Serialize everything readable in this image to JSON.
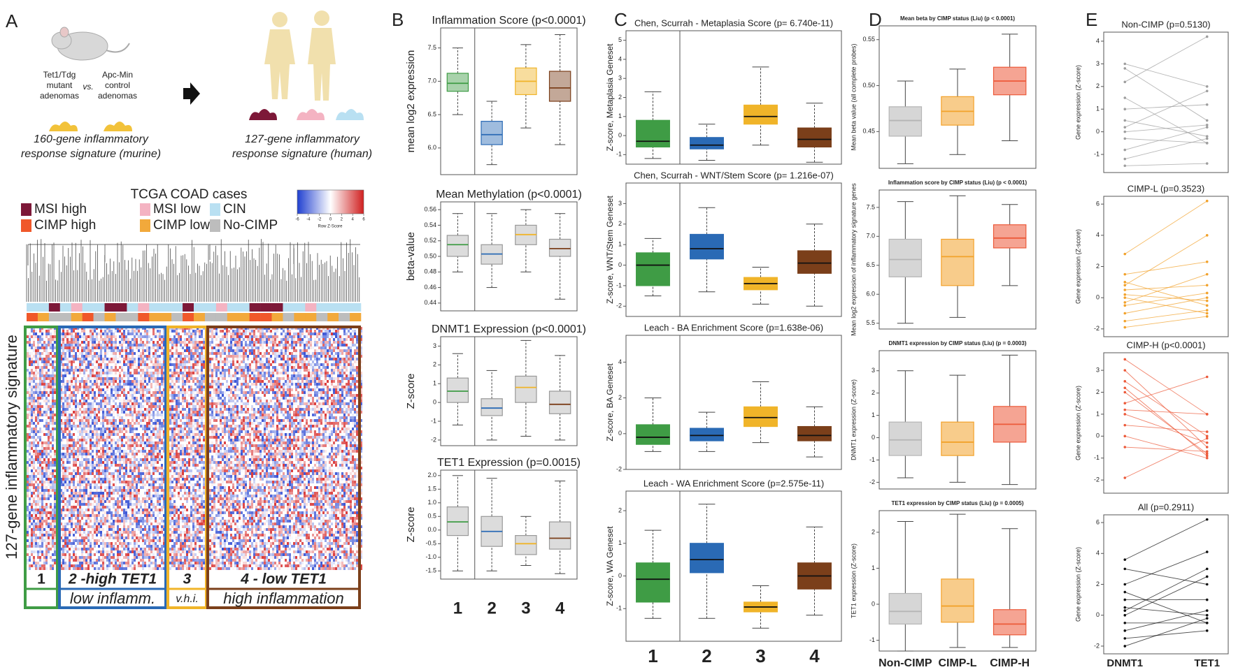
{
  "panel_labels": [
    "A",
    "B",
    "C",
    "D",
    "E"
  ],
  "panel_a": {
    "mutant_label": [
      "Tet1/Tdg",
      "mutant",
      "adenomas"
    ],
    "vs": "vs.",
    "control_label": [
      "Apc-Min",
      "control",
      "adenomas"
    ],
    "murine_signature": [
      "160-gene inflammatory",
      "response signature (murine)"
    ],
    "human_signature": [
      "127-gene inflammatory",
      "response signature (human)"
    ],
    "heatmap_title": "TCGA COAD cases",
    "legend": [
      {
        "name": "MSI high",
        "color": "#7d1838"
      },
      {
        "name": "MSI low",
        "color": "#f4b3c2"
      },
      {
        "name": "CIN",
        "color": "#b9e0f2"
      },
      {
        "name": "CIMP high",
        "color": "#f0582a"
      },
      {
        "name": "CIMP low",
        "color": "#f2a93b"
      },
      {
        "name": "No-CIMP",
        "color": "#bdbdbd"
      }
    ],
    "key": {
      "title": "Row Z-Score",
      "ticks": [
        -6,
        -4,
        -2,
        0,
        2,
        4,
        6
      ]
    },
    "row_label": "127-gene inflammatory signature",
    "clusters": [
      {
        "label": "1",
        "color": "#3f9c45"
      },
      {
        "label": "2 -high TET1",
        "sub": "low inflamm.",
        "color": "#2a6ab5"
      },
      {
        "label": "3",
        "sub": "v.h.i.",
        "color": "#f0b429"
      },
      {
        "label": "4 - low TET1",
        "sub": "high inflammation",
        "color": "#7b3f1a"
      }
    ]
  },
  "chart_data": [
    {
      "type": "box",
      "title": "Inflammation Score (p<0.0001)",
      "y_label": "mean log2 expression",
      "ylim": [
        5.6,
        7.8
      ],
      "yticks": [
        {
          "value": 6,
          "label": "6.0"
        },
        6.5,
        {
          "value": 7,
          "label": "7.0"
        },
        7.5
      ],
      "colors": [
        "#3f9c45",
        "#2a6ab5",
        "#f0b429",
        "#7b3f1a"
      ],
      "fill_opacity": 0.45,
      "boxes": [
        {
          "min": 6.5,
          "q1": 6.85,
          "median": 6.97,
          "q3": 7.12,
          "max": 7.5
        },
        {
          "min": 5.75,
          "q1": 6.05,
          "median": 6.2,
          "q3": 6.4,
          "max": 6.7
        },
        {
          "min": 6.3,
          "q1": 6.8,
          "median": 7.0,
          "q3": 7.2,
          "max": 7.55
        },
        {
          "min": 6.05,
          "q1": 6.7,
          "median": 6.9,
          "q3": 7.15,
          "max": 7.7
        }
      ]
    },
    {
      "type": "box",
      "title": "Mean Methylation (p<0.0001)",
      "y_label": "beta-value",
      "ylim": [
        0.43,
        0.57
      ],
      "yticks": [
        0.44,
        0.46,
        0.48,
        {
          "value": 0.5,
          "label": "0.50"
        },
        0.52,
        0.54,
        0.56
      ],
      "colors": [
        "#3f9c45",
        "#2a6ab5",
        "#f0b429",
        "#7b3f1a"
      ],
      "fill": "#dcdcdc",
      "boxes": [
        {
          "min": 0.48,
          "q1": 0.5,
          "median": 0.515,
          "q3": 0.527,
          "max": 0.555
        },
        {
          "min": 0.46,
          "q1": 0.49,
          "median": 0.503,
          "q3": 0.515,
          "max": 0.555
        },
        {
          "min": 0.48,
          "q1": 0.515,
          "median": 0.528,
          "q3": 0.54,
          "max": 0.56
        },
        {
          "min": 0.445,
          "q1": 0.5,
          "median": 0.51,
          "q3": 0.522,
          "max": 0.555
        }
      ]
    },
    {
      "type": "box",
      "title": "DNMT1 Expression (p<0.0001)",
      "y_label": "Z-score",
      "ylim": [
        -2.3,
        3.5
      ],
      "yticks": [
        -2,
        -1,
        0,
        1,
        2,
        3
      ],
      "colors": [
        "#3f9c45",
        "#2a6ab5",
        "#f0b429",
        "#7b3f1a"
      ],
      "fill": "#dcdcdc",
      "boxes": [
        {
          "min": -1.2,
          "q1": 0,
          "median": 0.6,
          "q3": 1.3,
          "max": 2.6
        },
        {
          "min": -2,
          "q1": -0.7,
          "median": -0.3,
          "q3": 0.2,
          "max": 1.7
        },
        {
          "min": -1.8,
          "q1": 0,
          "median": 0.8,
          "q3": 1.4,
          "max": 3.3
        },
        {
          "min": -2,
          "q1": -0.6,
          "median": -0.1,
          "q3": 0.6,
          "max": 2.5
        }
      ]
    },
    {
      "type": "box",
      "title": "TET1 Expression (p=0.0015)",
      "y_label": "Z-score",
      "ylim": [
        -1.8,
        2.2
      ],
      "yticks": [
        -1.5,
        {
          "value": -1,
          "label": "-1.0"
        },
        -0.5,
        {
          "value": 0,
          "label": "0.0"
        },
        0.5,
        {
          "value": 1,
          "label": "1.0"
        },
        1.5,
        {
          "value": 2,
          "label": "2.0"
        }
      ],
      "colors": [
        "#3f9c45",
        "#2a6ab5",
        "#f0b429",
        "#7b3f1a"
      ],
      "fill": "#dcdcdc",
      "categories": [
        "1",
        "2",
        "3",
        "4"
      ],
      "boxes": [
        {
          "min": -1.5,
          "q1": -0.2,
          "median": 0.3,
          "q3": 0.85,
          "max": 2
        },
        {
          "min": -1.5,
          "q1": -0.6,
          "median": -0.05,
          "q3": 0.5,
          "max": 1.9
        },
        {
          "min": -1.3,
          "q1": -0.9,
          "median": -0.5,
          "q3": -0.2,
          "max": 0.5
        },
        {
          "min": -1.6,
          "q1": -0.7,
          "median": -0.3,
          "q3": 0.3,
          "max": 1.8
        }
      ]
    },
    {
      "type": "box",
      "title": "Chen, Scurrah - Metaplasia Score (p= 6.740e-11)",
      "y_label": "Z-score, Metaplasia Geneset",
      "ylim": [
        -1.5,
        5.5
      ],
      "yticks": [
        -1,
        0,
        1,
        2,
        3,
        4,
        5
      ],
      "colors": [
        "#3f9c45",
        "#2a6ab5",
        "#f0b429",
        "#7b3f1a"
      ],
      "fill_opacity": 1,
      "boxes": [
        {
          "min": -1.2,
          "q1": -0.6,
          "median": -0.3,
          "q3": 0.8,
          "max": 2.3
        },
        {
          "min": -1.3,
          "q1": -0.7,
          "median": -0.5,
          "q3": -0.1,
          "max": 0.6
        },
        {
          "min": -0.5,
          "q1": 0.6,
          "median": 1.0,
          "q3": 1.6,
          "max": 3.6
        },
        {
          "min": -1.4,
          "q1": -0.6,
          "median": -0.2,
          "q3": 0.4,
          "max": 1.7
        }
      ]
    },
    {
      "type": "box",
      "title": "Chen, Scurrah - WNT/Stem Score (p= 1.216e-07)",
      "y_label": "Z-score, WNT/Stem Geneset",
      "ylim": [
        -2.5,
        4
      ],
      "yticks": [
        -2,
        -1,
        0,
        1,
        2,
        3
      ],
      "colors": [
        "#3f9c45",
        "#2a6ab5",
        "#f0b429",
        "#7b3f1a"
      ],
      "fill_opacity": 1,
      "boxes": [
        {
          "min": -1.5,
          "q1": -1.0,
          "median": 0,
          "q3": 0.6,
          "max": 1.3
        },
        {
          "min": -1.3,
          "q1": 0.3,
          "median": 0.8,
          "q3": 1.5,
          "max": 2.8
        },
        {
          "min": -1.9,
          "q1": -1.2,
          "median": -0.9,
          "q3": -0.6,
          "max": -0.1
        },
        {
          "min": -2.0,
          "q1": -0.4,
          "median": 0.1,
          "q3": 0.7,
          "max": 2.0
        }
      ]
    },
    {
      "type": "box",
      "title": "Leach - BA Enrichment Score (p=1.638e-06)",
      "y_label": "Z-score, BA Geneset",
      "ylim": [
        -2,
        5.5
      ],
      "yticks": [
        -2,
        0,
        2,
        4
      ],
      "colors": [
        "#3f9c45",
        "#2a6ab5",
        "#f0b429",
        "#7b3f1a"
      ],
      "fill_opacity": 1,
      "boxes": [
        {
          "min": -1.0,
          "q1": -0.6,
          "median": -0.2,
          "q3": 0.5,
          "max": 2.0
        },
        {
          "min": -1.0,
          "q1": -0.4,
          "median": -0.1,
          "q3": 0.3,
          "max": 1.2
        },
        {
          "min": -0.5,
          "q1": 0.4,
          "median": 0.9,
          "q3": 1.5,
          "max": 2.9
        },
        {
          "min": -1.3,
          "q1": -0.4,
          "median": -0.1,
          "q3": 0.4,
          "max": 1.5
        }
      ]
    },
    {
      "type": "box",
      "title": "Leach - WA Enrichment Score (p=2.575e-11)",
      "y_label": "Z-score, WA Geneset",
      "ylim": [
        -2,
        2.6
      ],
      "yticks": [
        -1,
        0,
        1,
        2
      ],
      "colors": [
        "#3f9c45",
        "#2a6ab5",
        "#f0b429",
        "#7b3f1a"
      ],
      "fill_opacity": 1,
      "categories": [
        "1",
        "2",
        "3",
        "4"
      ],
      "boxes": [
        {
          "min": -1.3,
          "q1": -0.8,
          "median": -0.1,
          "q3": 0.4,
          "max": 1.4
        },
        {
          "min": -1.3,
          "q1": 0.1,
          "median": 0.5,
          "q3": 1.0,
          "max": 2.2
        },
        {
          "min": -1.6,
          "q1": -1.1,
          "median": -0.95,
          "q3": -0.8,
          "max": -0.3
        },
        {
          "min": -1.2,
          "q1": -0.4,
          "median": 0,
          "q3": 0.4,
          "max": 1.5
        }
      ]
    },
    {
      "type": "box",
      "title": "Mean beta by CIMP status (Liu) (p < 0.0001)",
      "y_label": "Mean beta value (all complete probes)",
      "ylim": [
        0.41,
        0.565
      ],
      "yticks": [
        0.45,
        {
          "value": 0.5,
          "label": "0.50"
        },
        0.55
      ],
      "colors": [
        "#b5b5b5",
        "#f2a22b",
        "#ec5a3a"
      ],
      "fill_opacity": 0.55,
      "boxes": [
        {
          "min": 0.415,
          "q1": 0.445,
          "median": 0.462,
          "q3": 0.477,
          "max": 0.505
        },
        {
          "min": 0.425,
          "q1": 0.457,
          "median": 0.472,
          "q3": 0.488,
          "max": 0.518
        },
        {
          "min": 0.44,
          "q1": 0.49,
          "median": 0.505,
          "q3": 0.52,
          "max": 0.556
        }
      ]
    },
    {
      "type": "box",
      "title": "Inflammation score by CIMP status (Liu) (p < 0.0001)",
      "y_label": "Mean log2 expression of inflammatory signature genes",
      "ylim": [
        5.4,
        7.8
      ],
      "yticks": [
        5.5,
        {
          "value": 6,
          "label": "6.0"
        },
        6.5,
        {
          "value": 7,
          "label": "7.0"
        },
        7.5
      ],
      "colors": [
        "#b5b5b5",
        "#f2a22b",
        "#ec5a3a"
      ],
      "fill_opacity": 0.55,
      "boxes": [
        {
          "min": 5.5,
          "q1": 6.3,
          "median": 6.6,
          "q3": 6.95,
          "max": 7.6
        },
        {
          "min": 5.6,
          "q1": 6.15,
          "median": 6.65,
          "q3": 6.95,
          "max": 7.7
        },
        {
          "min": 6.15,
          "q1": 6.8,
          "median": 6.97,
          "q3": 7.2,
          "max": 7.55
        }
      ]
    },
    {
      "type": "box",
      "title": "DNMT1 expression by CIMP status (Liu) (p = 0.0003)",
      "y_label": "DNMT1 expression (Z-score)",
      "ylim": [
        -2.3,
        3.9
      ],
      "yticks": [
        -2,
        -1,
        0,
        1,
        2,
        3
      ],
      "colors": [
        "#b5b5b5",
        "#f2a22b",
        "#ec5a3a"
      ],
      "fill_opacity": 0.55,
      "boxes": [
        {
          "min": -1.8,
          "q1": -0.8,
          "median": -0.1,
          "q3": 0.7,
          "max": 3.0
        },
        {
          "min": -2,
          "q1": -0.8,
          "median": -0.2,
          "q3": 0.7,
          "max": 2.8
        },
        {
          "min": -2.1,
          "q1": -0.2,
          "median": 0.6,
          "q3": 1.4,
          "max": 3.7
        }
      ]
    },
    {
      "type": "box",
      "title": "TET1 expression by CIMP status (Liu) (p = 0.0005)",
      "y_label": "TET1 expression (Z-score)",
      "ylim": [
        -1.3,
        2.6
      ],
      "yticks": [
        -1,
        0,
        1,
        2
      ],
      "colors": [
        "#b5b5b5",
        "#f2a22b",
        "#ec5a3a"
      ],
      "fill_opacity": 0.55,
      "categories": [
        "Non-CIMP",
        "CIMP-L",
        "CIMP-H"
      ],
      "boxes": [
        {
          "min": -1.3,
          "q1": -0.55,
          "median": -0.2,
          "q3": 0.3,
          "max": 2.3
        },
        {
          "min": -1.2,
          "q1": -0.5,
          "median": -0.05,
          "q3": 0.7,
          "max": 2.5
        },
        {
          "min": -1.2,
          "q1": -0.85,
          "median": -0.55,
          "q3": -0.15,
          "max": 2.1
        }
      ]
    },
    {
      "type": "paired-line",
      "title": "Non-CIMP (p=0.5130)",
      "y_label": "Gene expression (Z-score)",
      "ylim": [
        -1.8,
        4.4
      ],
      "yticks": [
        -1,
        0,
        1,
        2,
        3,
        4
      ],
      "color": "#9e9e9e",
      "pairs": [
        [
          3.0,
          2.0
        ],
        [
          2.2,
          4.2
        ],
        [
          1.5,
          -0.5
        ],
        [
          1.0,
          1.2
        ],
        [
          0.5,
          -0.2
        ],
        [
          0,
          0.3
        ],
        [
          -0.3,
          -0.5
        ],
        [
          -0.8,
          0.2
        ],
        [
          -1.2,
          -0.3
        ],
        [
          -1.5,
          -1.4
        ],
        [
          2.8,
          0.5
        ],
        [
          0.2,
          1.8
        ]
      ]
    },
    {
      "type": "paired-line",
      "title": "CIMP-L (p=0.3523)",
      "y_label": "Gene expression (Z-score)",
      "ylim": [
        -2.5,
        6.5
      ],
      "yticks": [
        -2,
        0,
        2,
        4,
        6
      ],
      "color": "#f2a22b",
      "pairs": [
        [
          2.8,
          6.2
        ],
        [
          1.5,
          2.3
        ],
        [
          1.0,
          -0.5
        ],
        [
          0.5,
          0.8
        ],
        [
          0,
          -1.0
        ],
        [
          -0.5,
          0.3
        ],
        [
          -1.0,
          0
        ],
        [
          -1.5,
          -0.8
        ],
        [
          -1.9,
          -1.2
        ],
        [
          0.8,
          4.0
        ],
        [
          -0.3,
          1.5
        ],
        [
          0.2,
          -0.2
        ]
      ]
    },
    {
      "type": "paired-line",
      "title": "CIMP-H (p<0.0001)",
      "y_label": "Gene expression (Z-score)",
      "ylim": [
        -2.6,
        3.8
      ],
      "yticks": [
        -2,
        -1,
        0,
        1,
        2,
        3
      ],
      "color": "#ec5a3a",
      "pairs": [
        [
          3.5,
          1.0
        ],
        [
          3.0,
          -0.5
        ],
        [
          2.5,
          0
        ],
        [
          2.0,
          -0.8
        ],
        [
          1.5,
          2.7
        ],
        [
          1.0,
          -0.3
        ],
        [
          0.5,
          0.2
        ],
        [
          0,
          -1.0
        ],
        [
          -0.5,
          -0.7
        ],
        [
          -1.9,
          -0.1
        ],
        [
          1.2,
          1.0
        ],
        [
          2.2,
          -0.9
        ]
      ]
    },
    {
      "type": "paired-line",
      "title": "All (p=0.2911)",
      "y_label": "Gene expression (Z-score)",
      "ylim": [
        -2.5,
        6.5
      ],
      "yticks": [
        -2,
        0,
        2,
        4,
        6
      ],
      "color": "#111111",
      "categories": [
        "DNMT1",
        "TET1"
      ],
      "pairs": [
        [
          3.6,
          6.2
        ],
        [
          3.0,
          2.0
        ],
        [
          2.0,
          4.1
        ],
        [
          1.5,
          -0.5
        ],
        [
          1.0,
          1.0
        ],
        [
          0.5,
          0
        ],
        [
          0,
          2.5
        ],
        [
          -0.5,
          -0.5
        ],
        [
          -1.0,
          0.3
        ],
        [
          -1.5,
          -1.0
        ],
        [
          -2.0,
          -0.2
        ],
        [
          0.3,
          3.0
        ]
      ]
    }
  ]
}
